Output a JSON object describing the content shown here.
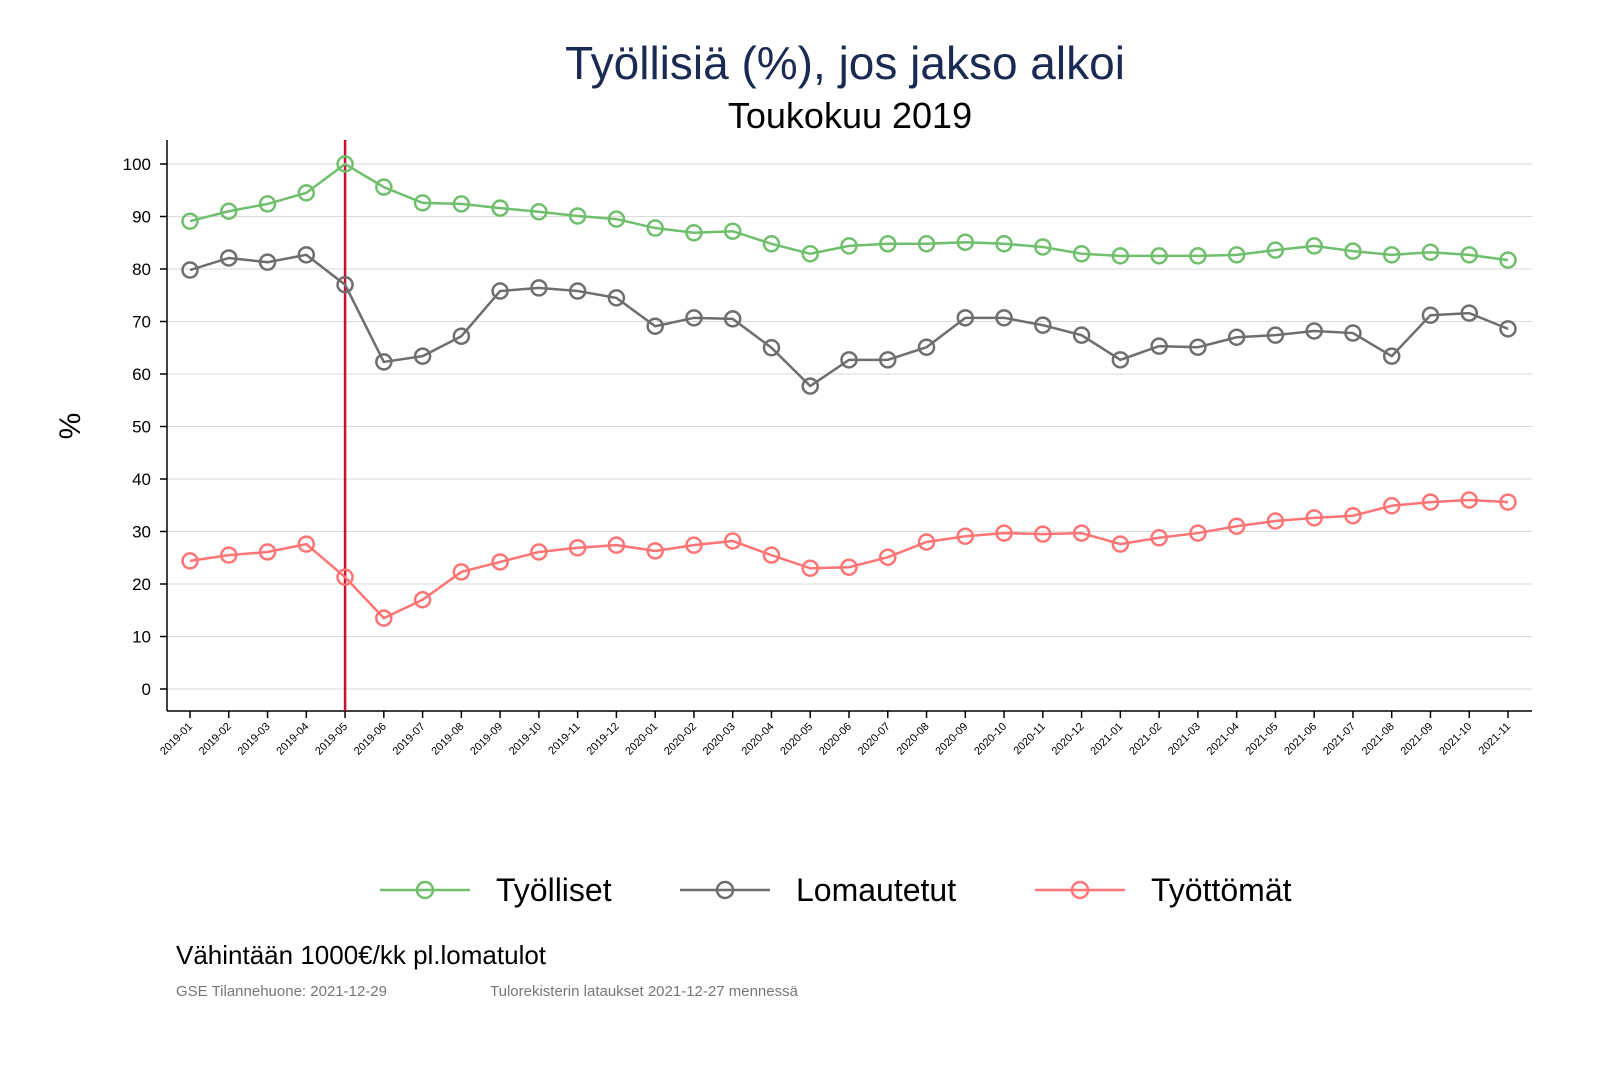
{
  "chart_data": {
    "type": "line",
    "title": "Työllisiä (%), jos jakso alkoi",
    "subtitle": "Toukokuu 2019",
    "ylabel": "%",
    "xlabel": "",
    "ylim": [
      -4,
      104
    ],
    "yticks": [
      0,
      10,
      20,
      30,
      40,
      50,
      60,
      70,
      80,
      90,
      100
    ],
    "grid": true,
    "legend_position": "bottom",
    "reference_line": {
      "x": "2019-05",
      "color": "#c8102e"
    },
    "x": [
      "2019-01",
      "2019-02",
      "2019-03",
      "2019-04",
      "2019-05",
      "2019-06",
      "2019-07",
      "2019-08",
      "2019-09",
      "2019-10",
      "2019-11",
      "2019-12",
      "2020-01",
      "2020-02",
      "2020-03",
      "2020-04",
      "2020-05",
      "2020-06",
      "2020-07",
      "2020-08",
      "2020-09",
      "2020-10",
      "2020-11",
      "2020-12",
      "2021-01",
      "2021-02",
      "2021-03",
      "2021-04",
      "2021-05",
      "2021-06",
      "2021-07",
      "2021-08",
      "2021-09",
      "2021-10",
      "2021-11"
    ],
    "series": [
      {
        "name": "Työlliset",
        "color": "#6fbf6c",
        "values": [
          89.1,
          91.0,
          92.4,
          94.5,
          100,
          95.6,
          92.6,
          92.4,
          91.6,
          90.9,
          90.1,
          89.5,
          87.8,
          86.9,
          87.2,
          84.8,
          82.9,
          84.4,
          84.8,
          84.8,
          85.1,
          84.8,
          84.2,
          82.9,
          82.5,
          82.5,
          82.5,
          82.7,
          83.6,
          84.4,
          83.4,
          82.7,
          83.2,
          82.7,
          81.7
        ]
      },
      {
        "name": "Lomautetut",
        "color": "#6e6e6e",
        "values": [
          79.8,
          82.1,
          81.3,
          82.7,
          77.0,
          62.3,
          63.4,
          67.2,
          75.8,
          76.4,
          75.8,
          74.5,
          69.1,
          70.7,
          70.5,
          65.0,
          57.7,
          62.7,
          62.7,
          65.1,
          70.7,
          70.7,
          69.3,
          67.4,
          62.7,
          65.3,
          65.1,
          67.0,
          67.4,
          68.2,
          67.8,
          63.4,
          71.2,
          71.6,
          68.6
        ]
      },
      {
        "name": "Työttömät",
        "color": "#ff7474",
        "values": [
          24.4,
          25.5,
          26.1,
          27.6,
          21.3,
          13.5,
          17.0,
          22.3,
          24.2,
          26.1,
          26.9,
          27.4,
          26.3,
          27.4,
          28.2,
          25.5,
          23.0,
          23.2,
          25.1,
          28.0,
          29.1,
          29.7,
          29.5,
          29.7,
          27.6,
          28.8,
          29.7,
          31.0,
          32.0,
          32.6,
          33.0,
          34.9,
          35.6,
          36.0,
          35.6
        ]
      }
    ]
  },
  "footer": {
    "note": "Vähintään 1000€/kk pl.lomatulot",
    "source": "GSE Tilannehuone: 2021-12-29",
    "data_info": "Tulorekisterin lataukset 2021-12-27 mennessä"
  }
}
